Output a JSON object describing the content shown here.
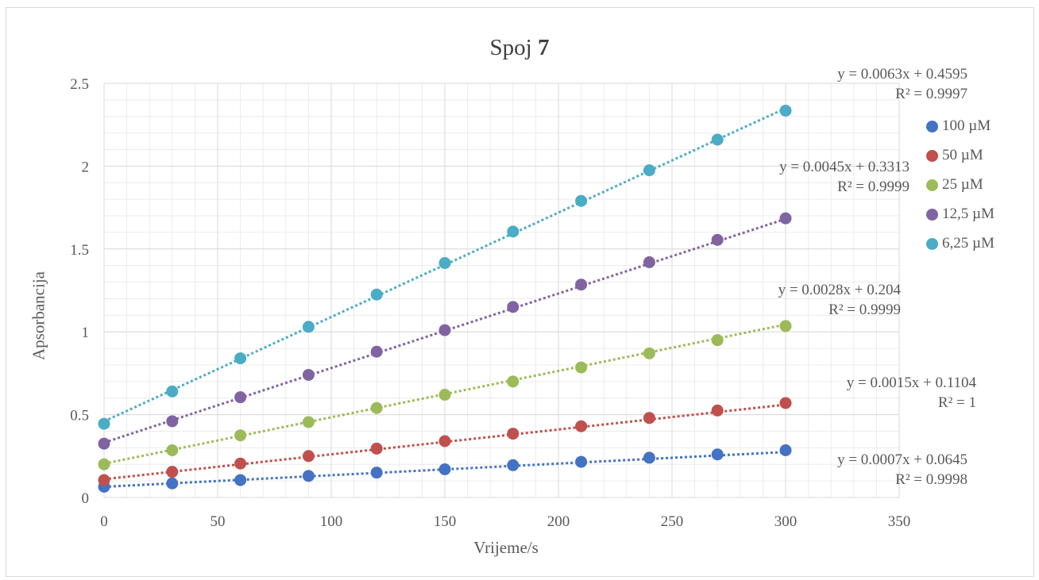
{
  "chart_data": {
    "type": "scatter",
    "title_prefix": "Spoj ",
    "title_bold": "7",
    "xlabel": "Vrijeme/s",
    "ylabel": "Apsorbancija",
    "xlim": [
      0,
      350
    ],
    "ylim": [
      0,
      2.5
    ],
    "x_ticks": [
      "0",
      "50",
      "100",
      "150",
      "200",
      "250",
      "300",
      "350"
    ],
    "y_ticks": [
      "0",
      "0.5",
      "1",
      "1.5",
      "2",
      "2.5"
    ],
    "grid": true,
    "trendline_style": "dotted linear",
    "legend_position": "right",
    "x": [
      0,
      30,
      60,
      90,
      120,
      150,
      180,
      210,
      240,
      270,
      300
    ],
    "series": [
      {
        "name": "100 µM",
        "color": "#4472c4",
        "values": [
          0.065,
          0.085,
          0.105,
          0.13,
          0.15,
          0.17,
          0.195,
          0.215,
          0.24,
          0.26,
          0.285
        ],
        "trend": {
          "slope": 0.0007,
          "intercept": 0.0645
        },
        "equation": "y = 0.0007x + 0.0645",
        "r2": "R² = 0.9998"
      },
      {
        "name": "50 µM",
        "color": "#c0504d",
        "values": [
          0.105,
          0.155,
          0.205,
          0.25,
          0.295,
          0.34,
          0.385,
          0.43,
          0.48,
          0.525,
          0.57
        ],
        "trend": {
          "slope": 0.0015,
          "intercept": 0.1104
        },
        "equation": "y = 0.0015x + 0.1104",
        "r2": "R² = 1"
      },
      {
        "name": "25 µM",
        "color": "#9bbb59",
        "values": [
          0.2,
          0.285,
          0.375,
          0.455,
          0.54,
          0.62,
          0.7,
          0.785,
          0.87,
          0.95,
          1.035
        ],
        "trend": {
          "slope": 0.0028,
          "intercept": 0.204
        },
        "equation": "y = 0.0028x + 0.204",
        "r2": "R² = 0.9999"
      },
      {
        "name": "12,5 µM",
        "color": "#8064a2",
        "values": [
          0.325,
          0.46,
          0.605,
          0.74,
          0.88,
          1.01,
          1.15,
          1.285,
          1.42,
          1.555,
          1.685
        ],
        "trend": {
          "slope": 0.0045,
          "intercept": 0.3313
        },
        "equation": "y = 0.0045x + 0.3313",
        "r2": "R² = 0.9999"
      },
      {
        "name": "6,25 µM",
        "color": "#4bacc6",
        "values": [
          0.445,
          0.64,
          0.84,
          1.03,
          1.225,
          1.415,
          1.605,
          1.79,
          1.975,
          2.16,
          2.335
        ],
        "trend": {
          "slope": 0.0063,
          "intercept": 0.4595
        },
        "equation": "y = 0.0063x + 0.4595",
        "r2": "R² = 0.9997"
      }
    ]
  }
}
